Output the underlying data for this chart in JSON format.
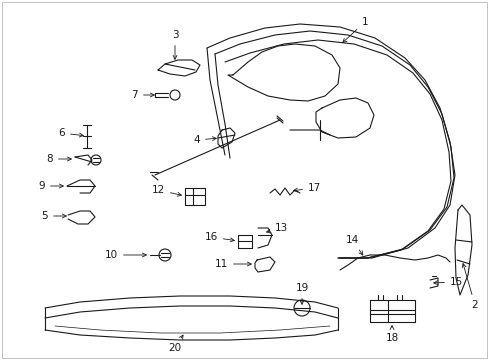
{
  "bg_color": "#ffffff",
  "line_color": "#1a1a1a",
  "lw": 0.8,
  "fig_width": 4.89,
  "fig_height": 3.6,
  "dpi": 100
}
